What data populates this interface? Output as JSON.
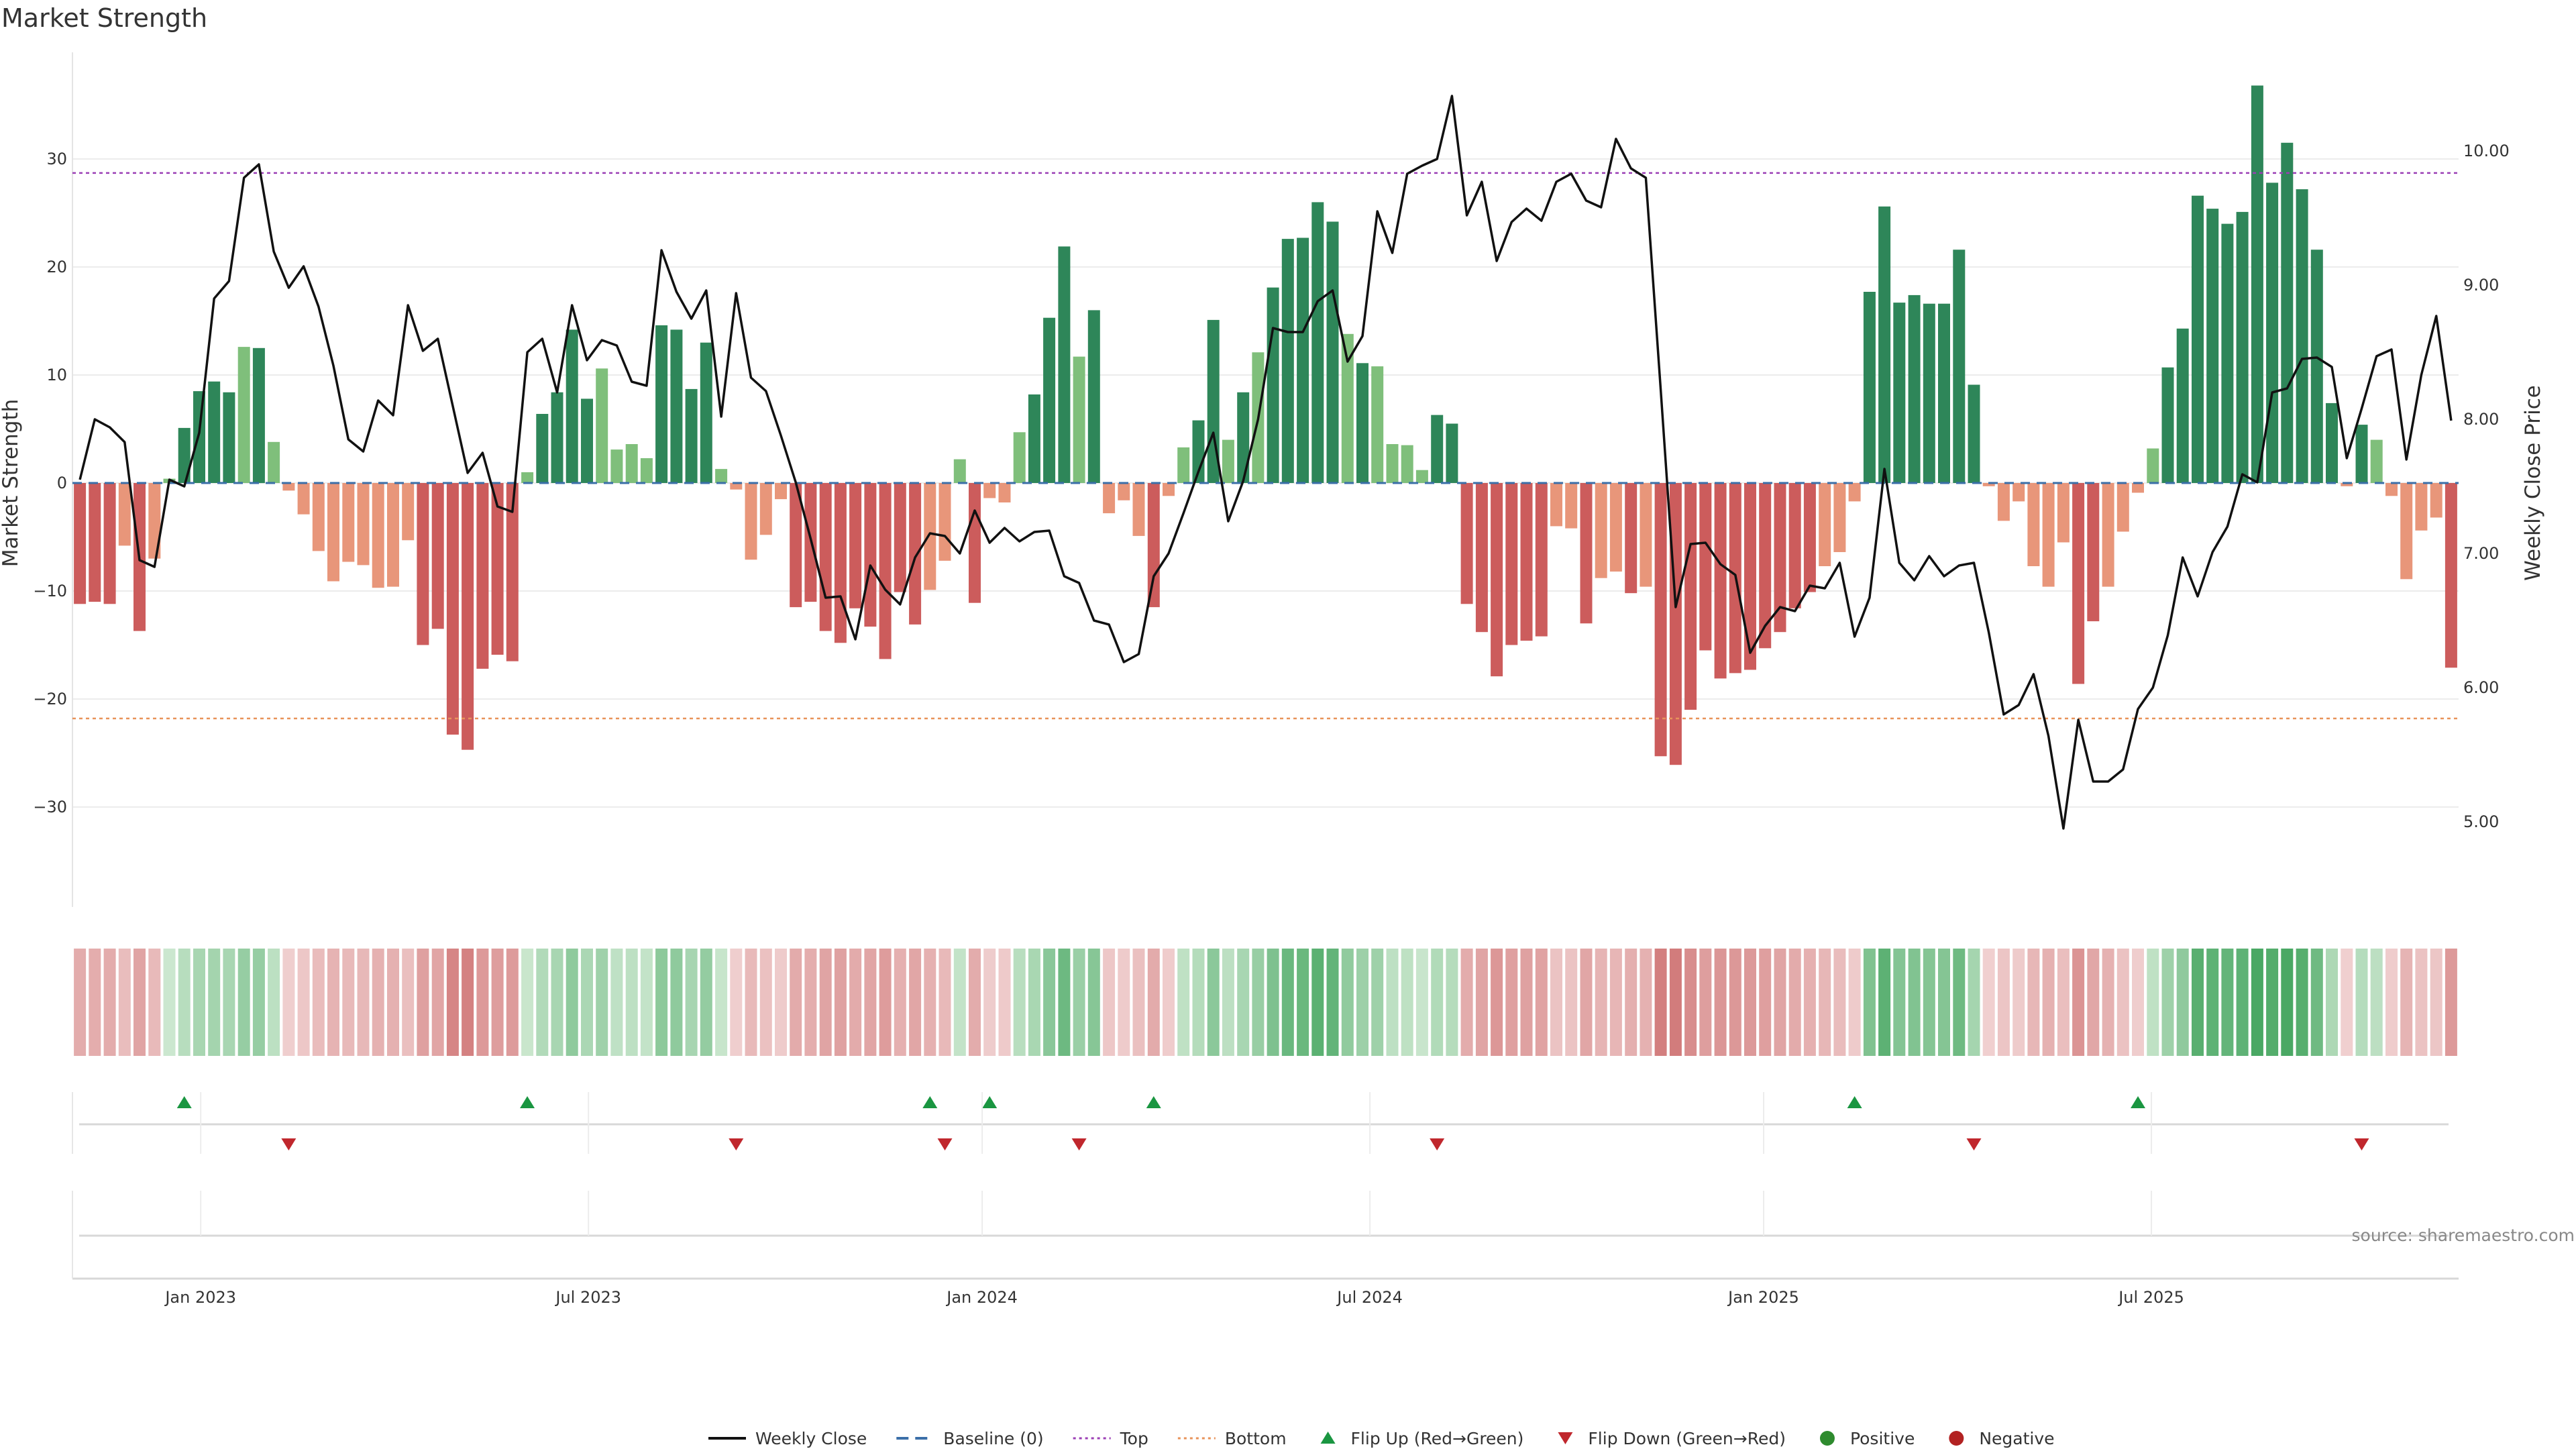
{
  "chart_data": {
    "type": "bar+line",
    "title": "Market Strength",
    "ylabel_left": "Market Strength",
    "ylabel_right": "Weekly Close Price",
    "source": "source: sharemaestro.com",
    "ylim_left": [
      -40,
      37
    ],
    "ylim_right": [
      4.5,
      10.5
    ],
    "yticks_left": [
      30,
      20,
      10,
      0,
      -10,
      -20,
      -30
    ],
    "yticks_right": [
      "10.00",
      "9.00",
      "8.00",
      "7.00",
      "6.00",
      "5.00"
    ],
    "top_threshold": 28.7,
    "bottom_threshold": -21.8,
    "x_ticks": [
      {
        "label": "Jan 2023",
        "week": 8.6
      },
      {
        "label": "Jul 2023",
        "week": 34.6
      },
      {
        "label": "Jan 2024",
        "week": 61.0
      },
      {
        "label": "Jul 2024",
        "week": 87.0
      },
      {
        "label": "Jan 2025",
        "week": 113.4
      },
      {
        "label": "Jul 2025",
        "week": 139.4
      }
    ],
    "strength": [
      -11.2,
      -11,
      -11.2,
      -5.8,
      -13.7,
      -7,
      0.4,
      5.1,
      8.5,
      9.4,
      8.4,
      12.6,
      12.5,
      3.8,
      -0.7,
      -2.9,
      -6.3,
      -9.1,
      -7.3,
      -7.6,
      -9.7,
      -9.6,
      -5.3,
      -15,
      -13.5,
      -23.3,
      -24.7,
      -17.2,
      -15.9,
      -16.5,
      1,
      6.4,
      8.4,
      14.2,
      7.8,
      10.6,
      3.1,
      3.6,
      2.3,
      14.6,
      14.2,
      8.7,
      13,
      1.3,
      -0.6,
      -7.1,
      -4.8,
      -1.5,
      -11.5,
      -11,
      -13.7,
      -14.8,
      -11.6,
      -13.3,
      -16.3,
      -10.1,
      -13.1,
      -9.9,
      -7.2,
      2.2,
      -11.1,
      -1.4,
      -1.8,
      4.7,
      8.2,
      15.3,
      21.9,
      11.7,
      16,
      -2.8,
      -1.6,
      -4.9,
      -11.5,
      -1.2,
      3.3,
      5.8,
      15.1,
      4,
      8.4,
      12.1,
      18.1,
      22.6,
      22.7,
      26,
      24.2,
      13.8,
      11.1,
      10.8,
      3.6,
      3.5,
      1.2,
      6.3,
      5.5,
      -11.2,
      -13.8,
      -17.9,
      -15,
      -14.6,
      -14.2,
      -4,
      -4.2,
      -13,
      -8.8,
      -8.2,
      -10.2,
      -9.6,
      -25.3,
      -26.1,
      -21,
      -15.5,
      -18.1,
      -17.6,
      -17.3,
      -15.3,
      -13.8,
      -11.6,
      -10.1,
      -7.7,
      -6.4,
      -1.7,
      17.7,
      25.6,
      16.7,
      17.4,
      16.6,
      16.6,
      21.6,
      9.1,
      -0.3,
      -3.5,
      -1.7,
      -7.7,
      -9.6,
      -5.5,
      -18.6,
      -12.8,
      -9.6,
      -4.5,
      -0.9,
      3.2,
      10.7,
      14.3,
      26.6,
      25.4,
      24,
      25.1,
      36.8,
      27.8,
      31.5,
      27.2,
      21.6,
      7.4,
      -0.3,
      5.4,
      4,
      -1.2,
      -8.9,
      -4.4,
      -3.2,
      -17.1
    ],
    "weekly_close": [
      7.55,
      8.0,
      7.94,
      7.83,
      6.95,
      6.9,
      7.55,
      7.5,
      7.9,
      8.9,
      9.03,
      9.8,
      9.9,
      9.25,
      8.98,
      9.14,
      8.84,
      8.4,
      7.85,
      7.76,
      8.14,
      8.03,
      8.85,
      8.51,
      8.6,
      8.1,
      7.6,
      7.75,
      7.35,
      7.31,
      8.5,
      8.6,
      8.2,
      8.85,
      8.44,
      8.59,
      8.55,
      8.28,
      8.25,
      9.26,
      8.95,
      8.75,
      8.96,
      8.02,
      8.94,
      8.31,
      8.21,
      7.88,
      7.53,
      7.11,
      6.67,
      6.68,
      6.36,
      6.91,
      6.73,
      6.62,
      6.97,
      7.15,
      7.13,
      7.0,
      7.32,
      7.08,
      7.19,
      7.09,
      7.16,
      7.17,
      6.83,
      6.78,
      6.5,
      6.47,
      6.19,
      6.25,
      6.83,
      7.0,
      7.3,
      7.61,
      7.9,
      7.24,
      7.54,
      8.0,
      8.68,
      8.65,
      8.65,
      8.88,
      8.96,
      8.43,
      8.62,
      9.55,
      9.24,
      9.83,
      9.89,
      9.94,
      10.41,
      9.52,
      9.77,
      9.18,
      9.47,
      9.57,
      9.48,
      9.77,
      9.83,
      9.63,
      9.58,
      10.09,
      9.87,
      9.8,
      8.22,
      6.6,
      7.07,
      7.08,
      6.92,
      6.84,
      6.26,
      6.46,
      6.6,
      6.57,
      6.76,
      6.74,
      6.93,
      6.38,
      6.67,
      7.63,
      6.93,
      6.8,
      6.98,
      6.83,
      6.91,
      6.93,
      6.41,
      5.8,
      5.87,
      6.1,
      5.64,
      4.95,
      5.76,
      5.3,
      5.3,
      5.39,
      5.84,
      6.0,
      6.39,
      6.97,
      6.68,
      7.01,
      7.2,
      7.59,
      7.53,
      8.2,
      8.23,
      8.45,
      8.46,
      8.39,
      7.71,
      8.08,
      8.47,
      8.52,
      7.7,
      8.33,
      8.77,
      7.99
    ],
    "heat_strip": [
      -11.2,
      -11,
      -11.2,
      -5.8,
      -13.7,
      -7,
      0.4,
      5.1,
      8.5,
      9.4,
      8.4,
      12.6,
      12.5,
      3.8,
      -0.7,
      -2.9,
      -6.3,
      -9.1,
      -7.3,
      -7.6,
      -9.7,
      -9.6,
      -5.3,
      -15,
      -13.5,
      -23.3,
      -24.7,
      -17.2,
      -15.9,
      -16.5,
      1,
      6.4,
      8.4,
      14.2,
      7.8,
      10.6,
      3.1,
      3.6,
      2.3,
      14.6,
      14.2,
      8.7,
      13,
      1.3,
      -0.6,
      -7.1,
      -4.8,
      -1.5,
      -11.5,
      -11,
      -13.7,
      -14.8,
      -11.6,
      -13.3,
      -16.3,
      -10.1,
      -13.1,
      -9.9,
      -7.2,
      2.2,
      -11.1,
      -1.4,
      -1.8,
      4.7,
      8.2,
      15.3,
      21.9,
      11.7,
      16,
      -2.8,
      -1.6,
      -4.9,
      -11.5,
      -1.2,
      3.3,
      5.8,
      15.1,
      4,
      8.4,
      12.1,
      18.1,
      22.6,
      22.7,
      26,
      24.2,
      13.8,
      11.1,
      10.8,
      3.6,
      3.5,
      1.2,
      6.3,
      5.5,
      -11.2,
      -13.8,
      -17.9,
      -15,
      -14.6,
      -14.2,
      -4,
      -4.2,
      -13,
      -8.8,
      -8.2,
      -10.2,
      -9.6,
      -25.3,
      -26.1,
      -21,
      -15.5,
      -18.1,
      -17.6,
      -17.3,
      -15.3,
      -13.8,
      -11.6,
      -10.1,
      -7.7,
      -6.4,
      -1.7,
      17.7,
      25.6,
      16.7,
      17.4,
      16.6,
      16.6,
      21.6,
      9.1,
      -0.3,
      -3.5,
      -1.7,
      -7.7,
      -9.6,
      -5.5,
      -18.6,
      -12.8,
      -9.6,
      -4.5,
      -0.9,
      3.2,
      10.7,
      14.3,
      26.6,
      25.4,
      24,
      25.1,
      36.8,
      27.8,
      31.5,
      27.2,
      21.6,
      7.4,
      -0.3,
      5.4,
      4,
      -1.2,
      -8.9,
      -4.4,
      -3.2,
      -17.1
    ],
    "flips_up": [
      7,
      30,
      57,
      61,
      72,
      119,
      138
    ],
    "flips_down": [
      14,
      44,
      58,
      67,
      91,
      127,
      153
    ],
    "legend": [
      {
        "label": "Weekly Close",
        "kind": "line",
        "color": "#111111"
      },
      {
        "label": "Baseline (0)",
        "kind": "dash",
        "color": "#3b6fa8"
      },
      {
        "label": "Top",
        "kind": "dot",
        "color": "#9b3fb5"
      },
      {
        "label": "Bottom",
        "kind": "dot",
        "color": "#e8935a"
      },
      {
        "label": "Flip Up (Red→Green)",
        "kind": "tri-up",
        "color": "#1a9641"
      },
      {
        "label": "Flip Down (Green→Red)",
        "kind": "tri-down",
        "color": "#c0272d"
      },
      {
        "label": "Positive",
        "kind": "circle",
        "color": "#2e8b2e"
      },
      {
        "label": "Negative",
        "kind": "circle",
        "color": "#b22222"
      }
    ],
    "colors": {
      "pos_strong": "#2e8659",
      "pos_weak": "#7fbf7b",
      "neg_strong": "#cc5c5c",
      "neg_weak": "#e8967a",
      "price_line": "#111111",
      "baseline": "#3b6fa8",
      "top_line": "#9b3fb5",
      "bottom_line": "#e8935a",
      "flip_up": "#1a9641",
      "flip_down": "#c0272d"
    }
  }
}
